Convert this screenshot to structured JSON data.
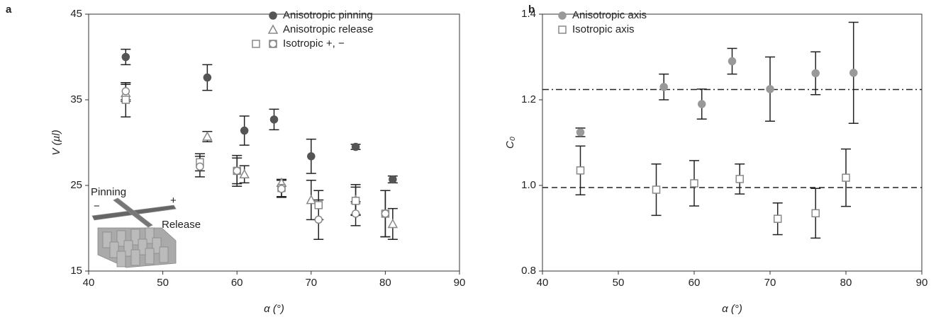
{
  "chart_data": [
    {
      "type": "scatter",
      "panel_label": "a",
      "xlabel": "α (°)",
      "ylabel": "V (µl)",
      "xlim": [
        40,
        90
      ],
      "xticks": [
        40,
        50,
        60,
        70,
        80,
        90
      ],
      "ylim": [
        15,
        45
      ],
      "yticks": [
        15,
        25,
        35,
        45
      ],
      "annotations": [
        "Pinning",
        "Release",
        "−",
        "+"
      ],
      "series": [
        {
          "name": "Anisotropic pinning",
          "color": "#555555",
          "marker": "circle",
          "filled": true,
          "x": [
            45,
            56,
            61,
            65,
            70,
            76,
            81
          ],
          "values": [
            40.0,
            37.6,
            31.4,
            32.7,
            28.4,
            29.5,
            25.7
          ],
          "errors": [
            0.9,
            1.5,
            1.7,
            1.2,
            2.0,
            0.3,
            0.4
          ]
        },
        {
          "name": "Anisotropic release",
          "color": "#888888",
          "marker": "triangle",
          "filled": false,
          "x": [
            45,
            56,
            61,
            66,
            70,
            76,
            81
          ],
          "values": [
            35.8,
            30.7,
            26.3,
            25.3,
            23.3,
            23.3,
            20.5
          ],
          "errors": [
            1.0,
            0.6,
            1.0,
            0.4,
            2.3,
            1.8,
            1.8
          ]
        },
        {
          "name": "Isotropic +, −",
          "color": "#888888",
          "marker": "square",
          "filled": false,
          "x": [
            45,
            55,
            60,
            66,
            71,
            76,
            80
          ],
          "values": [
            35.0,
            27.7,
            26.7,
            24.7,
            22.7,
            23.2,
            21.7
          ],
          "errors": [
            2.0,
            1.0,
            1.8,
            1.0,
            1.7,
            1.6,
            2.7
          ]
        },
        {
          "color": "#888888",
          "marker": "circle",
          "filled": false,
          "x": [
            45,
            55,
            60,
            66,
            71,
            76,
            80
          ],
          "values": [
            36.0,
            27.2,
            26.7,
            24.6,
            21.0,
            21.7,
            21.7
          ],
          "errors": [
            1.0,
            1.2,
            1.5,
            1.0,
            2.3,
            1.4,
            2.7
          ]
        }
      ]
    },
    {
      "type": "scatter",
      "panel_label": "b",
      "xlabel": "α (°)",
      "ylabel": "C₀",
      "xlim": [
        40,
        90
      ],
      "xticks": [
        40,
        50,
        60,
        70,
        80,
        90
      ],
      "ylim": [
        0.8,
        1.4
      ],
      "yticks": [
        0.8,
        {
          "value": 1,
          "label": "1.0"
        },
        1.2,
        1.4
      ],
      "reference_lines": [
        {
          "value": 1.224,
          "style": "dashdot"
        },
        {
          "value": 0.995,
          "style": "dashed"
        }
      ],
      "series": [
        {
          "name": "Anisotropic axis",
          "color": "#999999",
          "marker": "circle",
          "filled": true,
          "x": [
            45,
            56,
            61,
            65,
            70,
            76,
            81
          ],
          "values": [
            1.124,
            1.23,
            1.19,
            1.29,
            1.225,
            1.262,
            1.263
          ],
          "errors": [
            0.01,
            0.03,
            0.035,
            0.03,
            0.075,
            0.05,
            0.118
          ]
        },
        {
          "name": "Isotropic axis",
          "color": "#888888",
          "marker": "square",
          "filled": false,
          "x": [
            45,
            55,
            60,
            66,
            71,
            76,
            80
          ],
          "values": [
            1.035,
            0.99,
            1.005,
            1.015,
            0.922,
            0.935,
            1.018
          ],
          "errors": [
            0.057,
            0.06,
            0.053,
            0.035,
            0.037,
            0.058,
            0.067
          ]
        }
      ]
    }
  ]
}
